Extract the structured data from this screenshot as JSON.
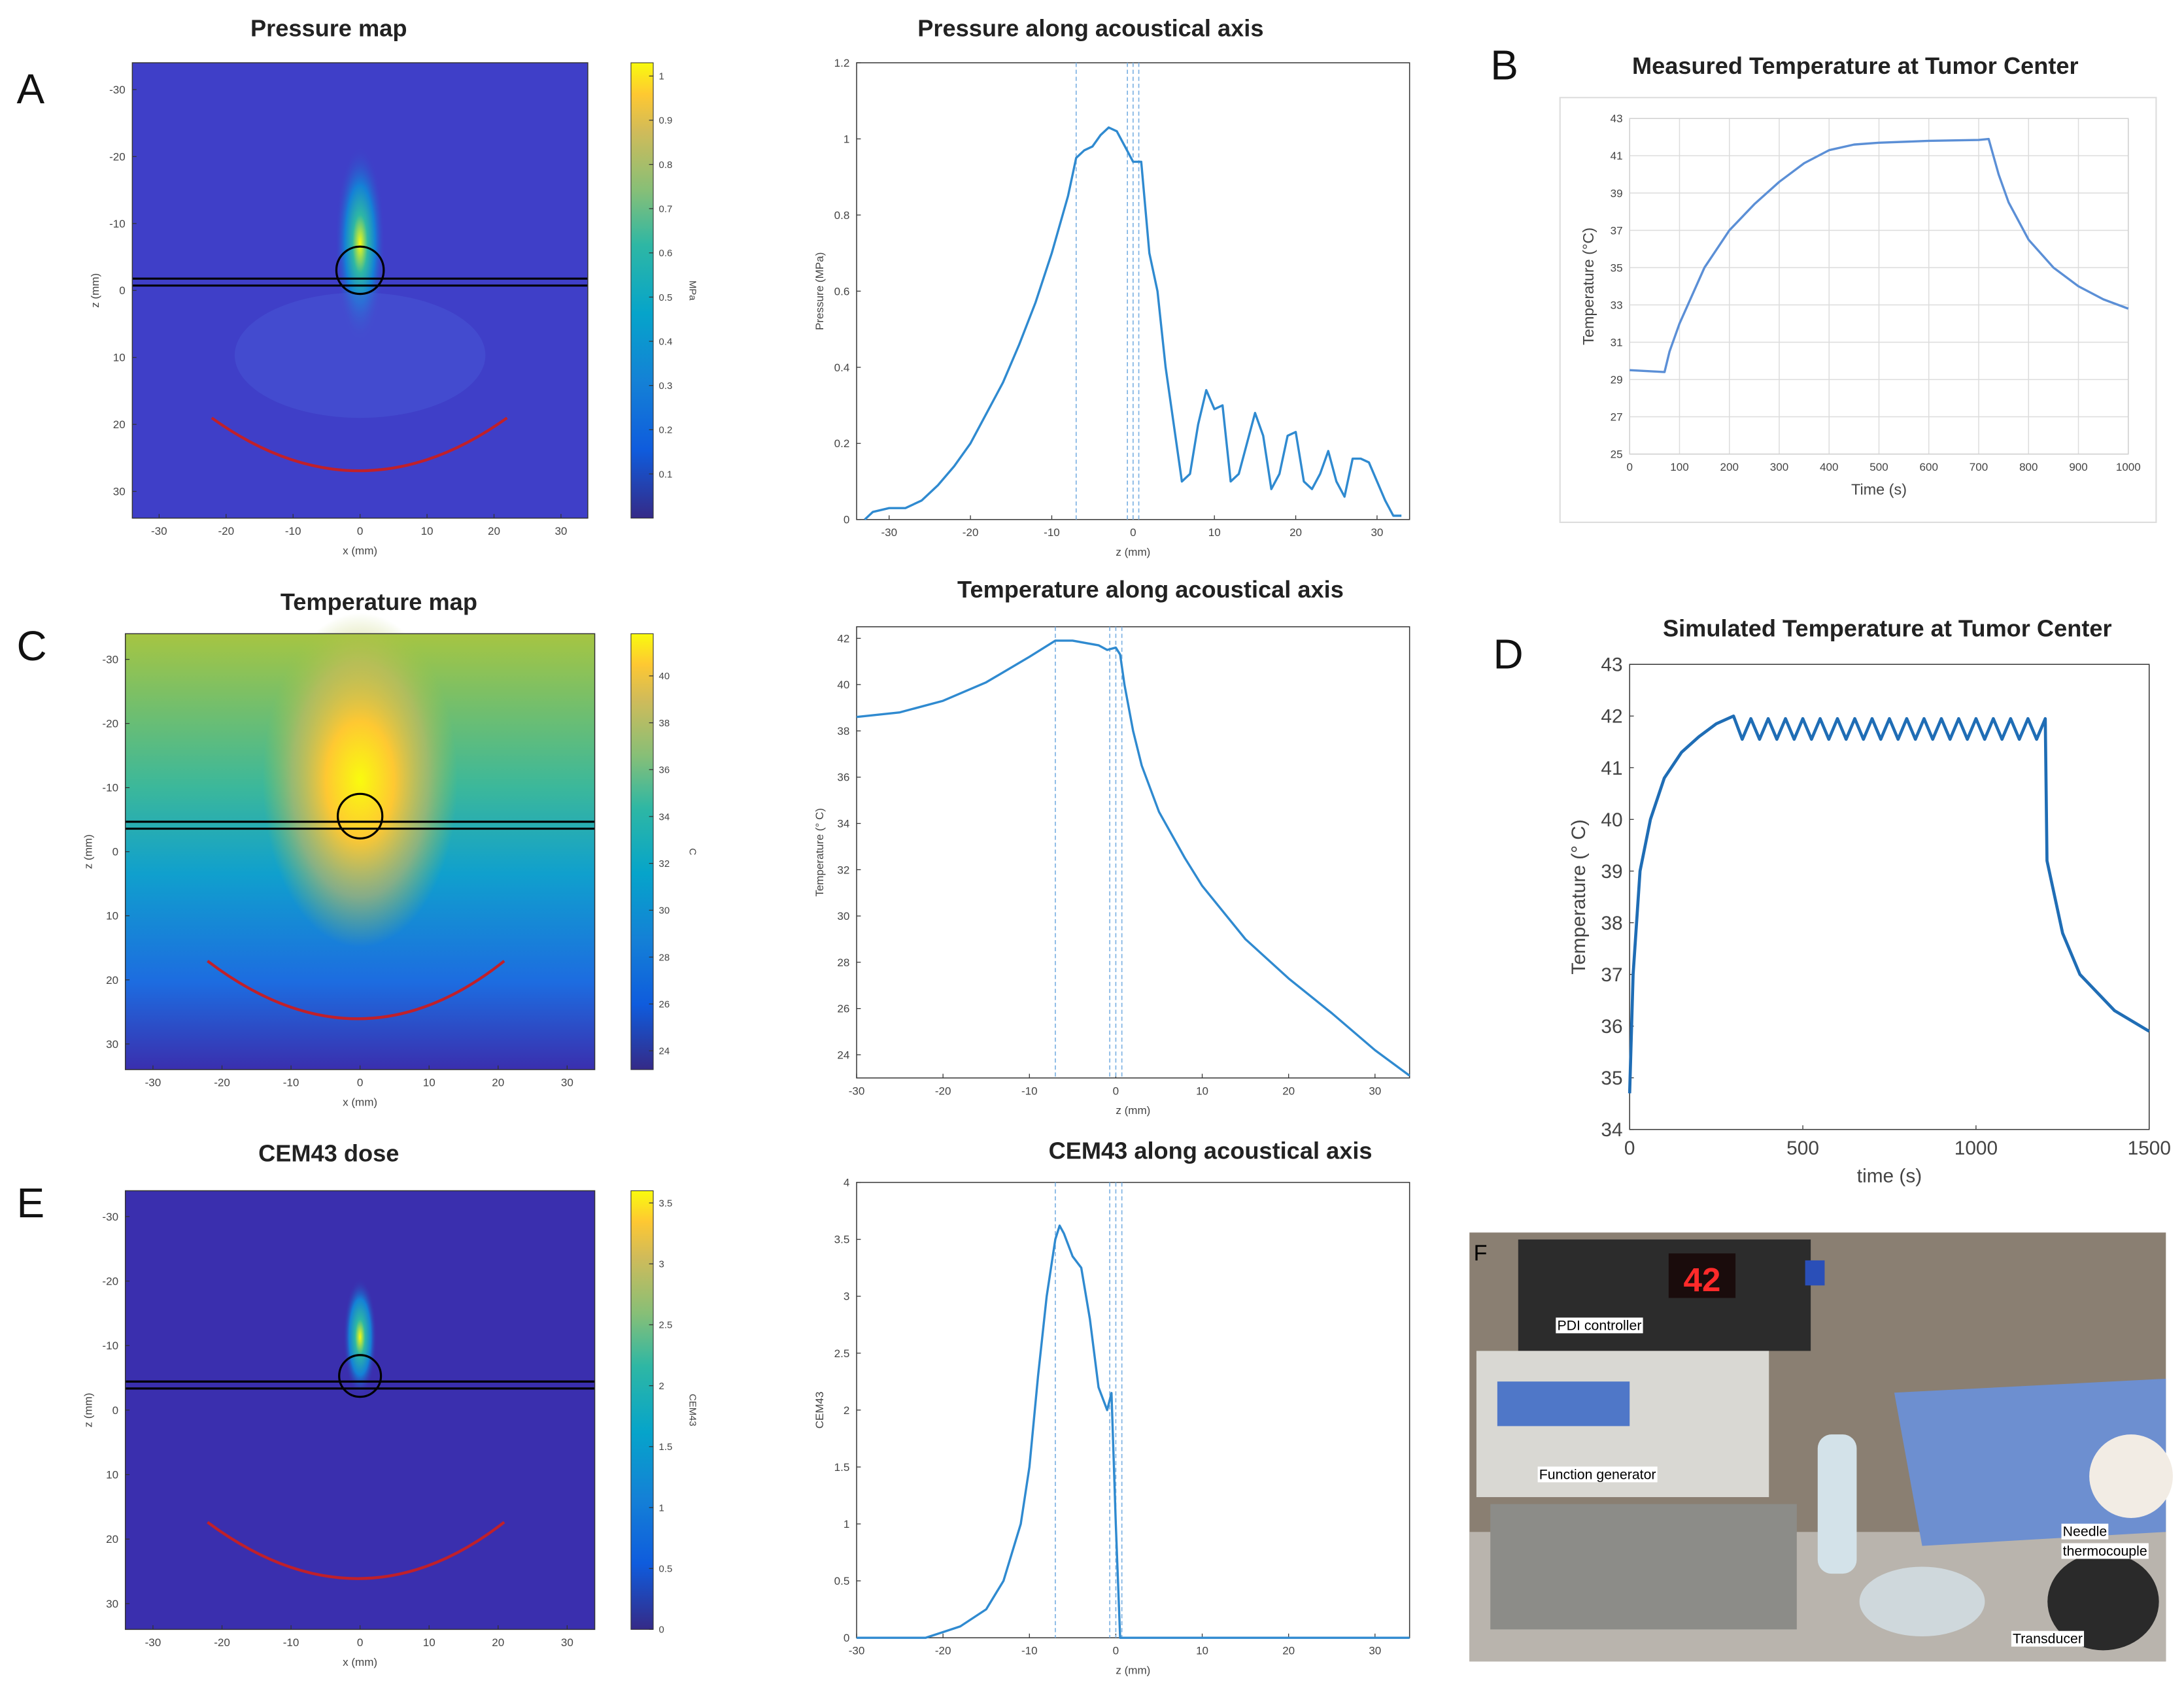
{
  "chart_data": [
    {
      "type": "heatmap",
      "panel": "A",
      "title": "Pressure map",
      "xlabel": "x (mm)",
      "ylabel": "z (mm)",
      "xlim": [
        -34,
        34
      ],
      "ylim": [
        -34,
        34
      ],
      "y_reversed": true,
      "xticks": [
        -30,
        -20,
        -10,
        0,
        10,
        20,
        30
      ],
      "yticks": [
        -30,
        -20,
        -10,
        0,
        10,
        20,
        30
      ],
      "colorbar": {
        "label": "MPa",
        "lim": [
          0,
          1.03
        ],
        "ticks": [
          0.1,
          0.2,
          0.3,
          0.4,
          0.5,
          0.6,
          0.7,
          0.8,
          0.9,
          1
        ]
      }
    },
    {
      "type": "line",
      "title": "Pressure along acoustical axis",
      "xlabel": "z (mm)",
      "ylabel": "Pressure (MPa)",
      "color": "#2f8ad0",
      "xlim": [
        -34,
        34
      ],
      "ylim": [
        0,
        1.2
      ],
      "xticks": [
        -30,
        -20,
        -10,
        0,
        10,
        20,
        30
      ],
      "yticks": [
        0,
        0.2,
        0.4,
        0.6,
        0.8,
        1,
        1.2
      ],
      "vlines": [
        -7,
        -0.7,
        0,
        0.7
      ],
      "x": [
        -33,
        -32,
        -30,
        -28,
        -26,
        -24,
        -22,
        -20,
        -18,
        -16,
        -14,
        -12,
        -10,
        -8,
        -7,
        -6,
        -5,
        -4,
        -3,
        -2,
        -1,
        0,
        1,
        2,
        3,
        4,
        5,
        6,
        7,
        8,
        9,
        10,
        11,
        12,
        13,
        14,
        15,
        16,
        17,
        18,
        19,
        20,
        21,
        22,
        23,
        24,
        25,
        26,
        27,
        28,
        29,
        30,
        31,
        32,
        33
      ],
      "values": [
        0,
        0.02,
        0.03,
        0.03,
        0.05,
        0.09,
        0.14,
        0.2,
        0.28,
        0.36,
        0.46,
        0.57,
        0.7,
        0.85,
        0.95,
        0.97,
        0.98,
        1.01,
        1.03,
        1.02,
        0.98,
        0.94,
        0.94,
        0.7,
        0.6,
        0.4,
        0.25,
        0.1,
        0.12,
        0.25,
        0.34,
        0.29,
        0.3,
        0.1,
        0.12,
        0.2,
        0.28,
        0.22,
        0.08,
        0.12,
        0.22,
        0.23,
        0.1,
        0.08,
        0.12,
        0.18,
        0.1,
        0.06,
        0.16,
        0.16,
        0.15,
        0.1,
        0.05,
        0.01,
        0.01
      ]
    },
    {
      "type": "line",
      "panel": "B",
      "title": "Measured Temperature at Tumor Center",
      "xlabel": "Time (s)",
      "ylabel": "Temperature (°C)",
      "color": "#5b8fd6",
      "grid": true,
      "xlim": [
        0,
        1000
      ],
      "ylim": [
        25,
        43
      ],
      "xticks": [
        0,
        100,
        200,
        300,
        400,
        500,
        600,
        700,
        800,
        900,
        1000
      ],
      "yticks": [
        25,
        27,
        29,
        31,
        33,
        35,
        37,
        39,
        41,
        43
      ],
      "x": [
        0,
        70,
        80,
        100,
        150,
        200,
        250,
        300,
        350,
        400,
        450,
        500,
        600,
        700,
        720,
        740,
        760,
        800,
        850,
        900,
        950,
        1000
      ],
      "values": [
        29.5,
        29.4,
        30.5,
        32,
        35,
        37,
        38.4,
        39.6,
        40.6,
        41.3,
        41.6,
        41.7,
        41.8,
        41.85,
        41.9,
        40,
        38.5,
        36.5,
        35,
        34,
        33.3,
        32.8
      ]
    },
    {
      "type": "heatmap",
      "panel": "C",
      "title": "Temperature map",
      "xlabel": "x (mm)",
      "ylabel": "z (mm)",
      "xlim": [
        -34,
        34
      ],
      "ylim": [
        -34,
        34
      ],
      "y_reversed": true,
      "xticks": [
        -30,
        -20,
        -10,
        0,
        10,
        20,
        30
      ],
      "yticks": [
        -30,
        -20,
        -10,
        0,
        10,
        20,
        30
      ],
      "colorbar": {
        "label": "C",
        "lim": [
          23.2,
          41.8
        ],
        "ticks": [
          24,
          26,
          28,
          30,
          32,
          34,
          36,
          38,
          40
        ]
      }
    },
    {
      "type": "line",
      "title": "Temperature along acoustical axis",
      "xlabel": "z (mm)",
      "ylabel": "Temperature (° C)",
      "color": "#2f8ad0",
      "xlim": [
        -30,
        34
      ],
      "ylim": [
        23,
        42.5
      ],
      "xticks": [
        -30,
        -20,
        -10,
        0,
        10,
        20,
        30
      ],
      "yticks": [
        24,
        26,
        28,
        30,
        32,
        34,
        36,
        38,
        40,
        42
      ],
      "vlines": [
        -7,
        -0.7,
        0,
        0.7
      ],
      "x": [
        -30,
        -25,
        -20,
        -15,
        -10,
        -7,
        -5,
        -2,
        -1,
        0,
        0.5,
        1,
        2,
        3,
        5,
        8,
        10,
        15,
        20,
        25,
        30,
        34
      ],
      "values": [
        38.6,
        38.8,
        39.3,
        40.1,
        41.2,
        41.9,
        41.9,
        41.7,
        41.5,
        41.6,
        41.3,
        40,
        38,
        36.5,
        34.5,
        32.5,
        31.3,
        29,
        27.3,
        25.8,
        24.2,
        23.1
      ]
    },
    {
      "type": "line",
      "panel": "D",
      "title": "Simulated Temperature at Tumor Center",
      "xlabel": "time (s)",
      "ylabel": "Temperature (° C)",
      "color": "#1f6db5",
      "xlim": [
        0,
        1500
      ],
      "ylim": [
        34,
        43
      ],
      "xticks": [
        0,
        500,
        1000,
        1500
      ],
      "yticks": [
        34,
        35,
        36,
        37,
        38,
        39,
        40,
        41,
        42,
        43
      ],
      "x": [
        0,
        10,
        30,
        60,
        100,
        150,
        200,
        250,
        300,
        325,
        350,
        375,
        400,
        425,
        450,
        475,
        500,
        525,
        550,
        575,
        600,
        625,
        650,
        675,
        700,
        725,
        750,
        775,
        800,
        825,
        850,
        875,
        900,
        925,
        950,
        975,
        1000,
        1025,
        1050,
        1075,
        1100,
        1125,
        1150,
        1175,
        1200,
        1205,
        1250,
        1300,
        1400,
        1500
      ],
      "values": [
        34.7,
        37,
        39,
        40,
        40.8,
        41.3,
        41.6,
        41.85,
        42,
        41.55,
        41.95,
        41.55,
        41.95,
        41.55,
        41.95,
        41.55,
        41.95,
        41.55,
        41.95,
        41.55,
        41.95,
        41.55,
        41.95,
        41.55,
        41.95,
        41.55,
        41.95,
        41.55,
        41.95,
        41.55,
        41.95,
        41.55,
        41.95,
        41.55,
        41.95,
        41.55,
        41.95,
        41.55,
        41.95,
        41.55,
        41.95,
        41.55,
        41.95,
        41.55,
        41.95,
        39.2,
        37.8,
        37,
        36.3,
        35.9
      ]
    },
    {
      "type": "heatmap",
      "panel": "E",
      "title": "CEM43 dose",
      "xlabel": "x (mm)",
      "ylabel": "z (mm)",
      "xlim": [
        -34,
        34
      ],
      "ylim": [
        -34,
        34
      ],
      "y_reversed": true,
      "xticks": [
        -30,
        -20,
        -10,
        0,
        10,
        20,
        30
      ],
      "yticks": [
        -30,
        -20,
        -10,
        0,
        10,
        20,
        30
      ],
      "colorbar": {
        "label": "CEM43",
        "lim": [
          0,
          3.6
        ],
        "ticks": [
          0,
          0.5,
          1,
          1.5,
          2,
          2.5,
          3,
          3.5
        ]
      }
    },
    {
      "type": "line",
      "title": "CEM43 along acoustical axis",
      "xlabel": "z (mm)",
      "ylabel": "CEM43",
      "color": "#2f8ad0",
      "xlim": [
        -30,
        34
      ],
      "ylim": [
        0,
        4
      ],
      "xticks": [
        -30,
        -20,
        -10,
        0,
        10,
        20,
        30
      ],
      "yticks": [
        0,
        0.5,
        1,
        1.5,
        2,
        2.5,
        3,
        3.5,
        4
      ],
      "vlines": [
        -7,
        -0.7,
        0,
        0.7
      ],
      "x": [
        -30,
        -22,
        -20,
        -18,
        -15,
        -13,
        -11,
        -10,
        -9,
        -8,
        -7,
        -6.5,
        -6,
        -5,
        -4,
        -3,
        -2,
        -1,
        -0.5,
        0,
        0.5,
        34
      ],
      "values": [
        0,
        0,
        0.05,
        0.1,
        0.25,
        0.5,
        1,
        1.5,
        2.3,
        3,
        3.5,
        3.62,
        3.55,
        3.35,
        3.25,
        2.8,
        2.2,
        2,
        2.15,
        1,
        0,
        0
      ]
    }
  ],
  "photo": {
    "panel": "F",
    "display": "42",
    "labels": [
      "PDI controller",
      "Function generator",
      "Needle",
      "thermocouple",
      "Transducer"
    ]
  }
}
